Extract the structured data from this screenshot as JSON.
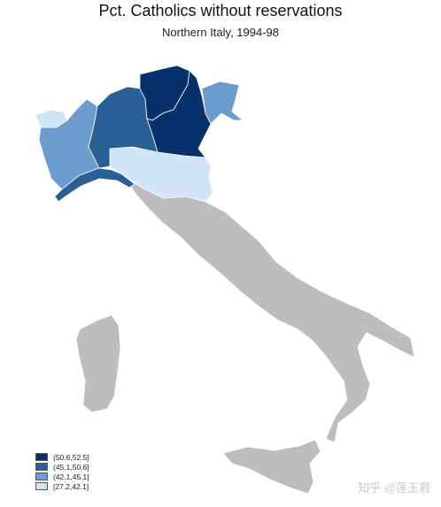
{
  "title": "Pct. Catholics without reservations",
  "subtitle": "Northern Italy, 1994-98",
  "legend": [
    {
      "label": "(50.6,52.5]",
      "color": "#08306b"
    },
    {
      "label": "(45.1,50.6]",
      "color": "#2a5f96"
    },
    {
      "label": "(42.1,45.1]",
      "color": "#6b9ccd"
    },
    {
      "label": "[27.2,42.1]",
      "color": "#cfe4f9"
    }
  ],
  "no_data_color": "#bdbdbd",
  "watermark": "知乎 @莲玉君"
}
